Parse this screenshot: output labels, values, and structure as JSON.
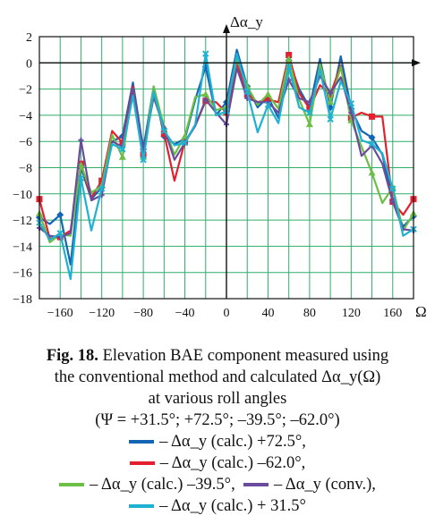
{
  "chart_data": {
    "type": "line",
    "ylabel": "Δα_y",
    "xlabel": "Ω",
    "xlim": [
      -180,
      180
    ],
    "ylim": [
      -18,
      2
    ],
    "xticks": [
      -160,
      -120,
      -80,
      -40,
      0,
      40,
      80,
      120,
      160
    ],
    "yticks": [
      2,
      0,
      -2,
      -4,
      -6,
      -8,
      -10,
      -12,
      -14,
      -16,
      -18
    ],
    "grid": true,
    "x": [
      -180,
      -170,
      -160,
      -150,
      -140,
      -130,
      -120,
      -110,
      -100,
      -90,
      -80,
      -70,
      -60,
      -50,
      -40,
      -30,
      -20,
      -10,
      0,
      10,
      20,
      30,
      40,
      50,
      60,
      70,
      80,
      90,
      100,
      110,
      120,
      130,
      140,
      150,
      160,
      170,
      180
    ],
    "series": [
      {
        "name": "– Δα_y (calc.) +72.5°,",
        "color": "#1565b5",
        "values": [
          -11.8,
          -12.3,
          -11.6,
          -15.4,
          -8.0,
          -10.4,
          -9.5,
          -6.0,
          -5.6,
          -1.5,
          -6.6,
          -1.8,
          -5.6,
          -6.2,
          -5.8,
          -2.8,
          -0.3,
          -4.0,
          -3.0,
          1.0,
          -1.8,
          -3.4,
          -2.6,
          -4.2,
          0.2,
          -2.0,
          -3.4,
          0.3,
          -3.4,
          0.5,
          -3.5,
          -5.2,
          -5.7,
          -7.0,
          -10.5,
          -12.5,
          -11.7
        ]
      },
      {
        "name": "– Δα_y (calc.) –62.0°,",
        "color": "#e5202e",
        "values": [
          -10.4,
          -13.4,
          -13.3,
          -12.8,
          -7.7,
          -10.3,
          -9.0,
          -5.2,
          -6.1,
          -1.8,
          -7.0,
          -2.0,
          -5.4,
          -9.0,
          -6.0,
          -4.8,
          -2.9,
          -3.0,
          -3.8,
          0.0,
          -2.4,
          -3.0,
          -2.8,
          -3.0,
          0.6,
          -2.3,
          -3.5,
          -1.7,
          -2.4,
          -0.2,
          -4.2,
          -3.8,
          -4.1,
          -4.1,
          -10.6,
          -11.6,
          -10.4
        ]
      },
      {
        "name": "– Δα_y (calc.) –39.5°,",
        "color": "#6abf44",
        "values": [
          -11.5,
          -13.7,
          -13.1,
          -13.2,
          -7.8,
          -9.9,
          -9.4,
          -5.5,
          -7.2,
          -2.0,
          -7.2,
          -1.8,
          -4.9,
          -7.0,
          -5.6,
          -2.6,
          -2.4,
          -3.6,
          -3.4,
          0.3,
          -1.8,
          -3.2,
          -2.4,
          -3.5,
          0.3,
          -2.8,
          -4.7,
          -0.1,
          -3.0,
          -0.3,
          -4.4,
          -6.4,
          -8.4,
          -10.7,
          -9.5,
          -12.8,
          -11.5
        ]
      },
      {
        "name": "– Δα_y (conv.),",
        "color": "#6a4c9c",
        "values": [
          -12.6,
          -13.2,
          -13.3,
          -13.0,
          -5.9,
          -10.5,
          -10.1,
          -6.0,
          -6.4,
          -2.0,
          -6.8,
          -2.6,
          -5.0,
          -7.4,
          -6.1,
          -4.8,
          -2.8,
          -3.8,
          -4.7,
          -0.4,
          -2.7,
          -3.0,
          -3.0,
          -3.8,
          -1.3,
          -2.7,
          -3.0,
          -1.0,
          -2.3,
          -1.1,
          -3.8,
          -7.1,
          -6.3,
          -7.7,
          -10.6,
          -12.7,
          -12.8
        ]
      },
      {
        "name": "– Δα_y (calc.) + 31.5°",
        "color": "#1fb1d2",
        "values": [
          -12.2,
          -13.5,
          -13.0,
          -16.5,
          -8.8,
          -12.8,
          -9.6,
          -6.2,
          -6.6,
          -2.5,
          -7.4,
          -2.2,
          -5.2,
          -6.3,
          -6.1,
          -4.7,
          0.7,
          -4.0,
          -3.7,
          0.7,
          -2.2,
          -5.3,
          -3.2,
          -4.6,
          -0.3,
          -3.4,
          -3.8,
          -0.5,
          -4.3,
          -1.4,
          -3.1,
          -5.9,
          -6.2,
          -6.9,
          -9.6,
          -13.2,
          -12.7
        ]
      }
    ],
    "marker_x": [
      -180,
      -160,
      -140,
      -120,
      -100,
      -80,
      -60,
      -40,
      -20,
      0,
      20,
      40,
      60,
      80,
      100,
      120,
      140,
      160,
      180
    ]
  },
  "caption": {
    "fig_label": "Fig. 18.",
    "line1": " Elevation BAE component measured using",
    "line2": "the conventional method and calculated Δα_y(Ω)",
    "line3": "at various roll angles",
    "line4": "(Ψ = +31.5°; +72.5°; –39.5°; –62.0°)"
  }
}
